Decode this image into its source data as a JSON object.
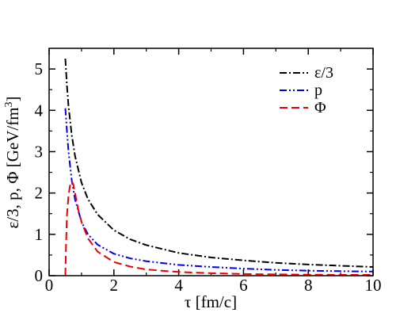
{
  "chart_data": {
    "type": "line",
    "xlabel": "τ  [fm/c]",
    "ylabel_main": "ε/3, p, Φ  [GeV/fm",
    "ylabel_sup": "3",
    "ylabel_close": "]",
    "xlim": [
      0,
      10
    ],
    "ylim": [
      0,
      5.5
    ],
    "x_ticks": [
      0,
      2,
      4,
      6,
      8,
      10
    ],
    "y_ticks": [
      0,
      1,
      2,
      3,
      4,
      5
    ],
    "grid": false,
    "legend_position": "top-right",
    "series": [
      {
        "name": "ε/3",
        "color": "#000000",
        "dash": "dash-dot",
        "x": [
          0.5,
          0.55,
          0.6,
          0.7,
          0.8,
          1.0,
          1.2,
          1.5,
          2.0,
          2.5,
          3.0,
          4.0,
          5.0,
          6.0,
          7.0,
          8.0,
          9.0,
          10.0
        ],
        "y": [
          5.25,
          4.6,
          4.1,
          3.4,
          2.9,
          2.25,
          1.85,
          1.48,
          1.1,
          0.88,
          0.74,
          0.55,
          0.44,
          0.37,
          0.31,
          0.27,
          0.24,
          0.21
        ]
      },
      {
        "name": "p",
        "color": "#0000ee",
        "dash": "dash-dot-dot",
        "x": [
          0.5,
          0.55,
          0.6,
          0.7,
          0.8,
          1.0,
          1.2,
          1.5,
          2.0,
          2.5,
          3.0,
          4.0,
          5.0,
          6.0,
          7.0,
          8.0,
          9.0,
          10.0
        ],
        "y": [
          4.05,
          3.5,
          3.0,
          2.3,
          1.85,
          1.3,
          1.0,
          0.75,
          0.53,
          0.42,
          0.35,
          0.26,
          0.21,
          0.17,
          0.14,
          0.12,
          0.11,
          0.1
        ]
      },
      {
        "name": "Φ",
        "color": "#ee0000",
        "dash": "dashed",
        "x": [
          0.5,
          0.52,
          0.55,
          0.6,
          0.65,
          0.7,
          0.75,
          0.8,
          0.9,
          1.0,
          1.2,
          1.5,
          2.0,
          2.5,
          3.0,
          4.0,
          5.0,
          6.0,
          7.0,
          8.0,
          9.0,
          10.0
        ],
        "y": [
          0.0,
          0.7,
          1.45,
          1.95,
          2.2,
          2.28,
          2.2,
          2.0,
          1.6,
          1.3,
          0.9,
          0.58,
          0.33,
          0.22,
          0.15,
          0.09,
          0.06,
          0.04,
          0.03,
          0.025,
          0.02,
          0.02
        ]
      }
    ]
  }
}
